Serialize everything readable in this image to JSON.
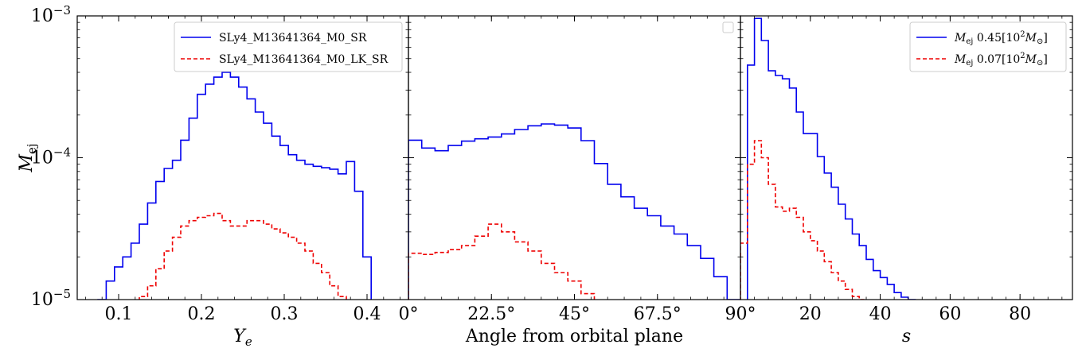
{
  "chart_data": [
    {
      "type": "step",
      "panel": "Ye",
      "xlabel": "Y",
      "xlabel_sub": "e",
      "ylabel": "M",
      "ylabel_sub": "ej",
      "xlim": [
        0.05,
        0.45
      ],
      "ylim": [
        1e-05,
        0.001
      ],
      "yscale": "log",
      "xticks": [
        0.1,
        0.2,
        0.3,
        0.4
      ],
      "xtick_labels": [
        "0.1",
        "0.2",
        "0.3",
        "0.4"
      ],
      "ytick_labels": [
        {
          "base": "10",
          "exp": "−5",
          "value": 1e-05
        },
        {
          "base": "10",
          "exp": "−4",
          "value": 0.0001
        },
        {
          "base": "10",
          "exp": "−3",
          "value": 0.001
        }
      ],
      "legend_position": "upper right",
      "series": [
        {
          "name": "SLy4_M13641364_M0_SR",
          "color": "#0000ee",
          "style": "solid",
          "bin_edges": [
            0.075,
            0.085,
            0.095,
            0.105,
            0.115,
            0.125,
            0.135,
            0.145,
            0.155,
            0.165,
            0.175,
            0.185,
            0.195,
            0.205,
            0.215,
            0.225,
            0.235,
            0.245,
            0.255,
            0.265,
            0.275,
            0.285,
            0.295,
            0.305,
            0.315,
            0.325,
            0.335,
            0.345,
            0.355,
            0.365,
            0.375,
            0.385,
            0.395,
            0.405
          ],
          "values": [
            1e-05,
            1.35e-05,
            1.7e-05,
            2e-05,
            2.5e-05,
            3.4e-05,
            4.8e-05,
            6.8e-05,
            8.4e-05,
            9.6e-05,
            0.000133,
            0.00019,
            0.00028,
            0.00033,
            0.00037,
            0.0004,
            0.00037,
            0.000315,
            0.00026,
            0.00021,
            0.000175,
            0.000142,
            0.000122,
            0.000105,
            9.6e-05,
            9e-05,
            8.7e-05,
            8.5e-05,
            8.3e-05,
            7.7e-05,
            9.4e-05,
            5.8e-05,
            2e-05
          ]
        },
        {
          "name": "SLy4_M13641364_M0_LK_SR",
          "color": "#ee0000",
          "style": "dashed",
          "bin_edges": [
            0.125,
            0.135,
            0.145,
            0.155,
            0.165,
            0.175,
            0.185,
            0.195,
            0.205,
            0.215,
            0.225,
            0.235,
            0.245,
            0.255,
            0.265,
            0.275,
            0.285,
            0.295,
            0.305,
            0.315,
            0.325,
            0.335,
            0.345,
            0.355,
            0.365,
            0.375
          ],
          "values": [
            1.05e-05,
            1.25e-05,
            1.65e-05,
            2.2e-05,
            2.75e-05,
            3.3e-05,
            3.6e-05,
            3.8e-05,
            3.9e-05,
            4.05e-05,
            3.6e-05,
            3.3e-05,
            3.3e-05,
            3.6e-05,
            3.6e-05,
            3.4e-05,
            3.15e-05,
            2.95e-05,
            2.75e-05,
            2.5e-05,
            2.2e-05,
            1.8e-05,
            1.55e-05,
            1.25e-05,
            1.05e-05
          ]
        }
      ]
    },
    {
      "type": "step",
      "panel": "angle",
      "xlabel": "Angle from orbital plane",
      "xlim": [
        0,
        90
      ],
      "ylim": [
        1e-05,
        0.001
      ],
      "yscale": "log",
      "xticks": [
        0,
        22.5,
        45,
        67.5,
        90
      ],
      "xtick_labels": [
        "0°",
        "22.5°",
        "45°",
        "67.5°",
        "90°"
      ],
      "legend_position": "upper right",
      "legend_empty": true,
      "series": [
        {
          "color": "#0000ee",
          "style": "solid",
          "bin_edges": [
            0,
            3.6,
            7.2,
            10.8,
            14.4,
            18,
            21.6,
            25.2,
            28.8,
            32.4,
            36,
            39.6,
            43.2,
            46.8,
            50.4,
            54,
            57.6,
            61.2,
            64.8,
            68.4,
            72,
            75.6,
            79.2,
            82.8,
            86.4,
            90
          ],
          "values": [
            0.000133,
            0.000117,
            0.000112,
            0.000122,
            0.000131,
            0.000136,
            0.00014,
            0.000147,
            0.000158,
            0.000168,
            0.000173,
            0.00017,
            0.000162,
            0.000132,
            9.1e-05,
            6.5e-05,
            5.3e-05,
            4.4e-05,
            3.9e-05,
            3.3e-05,
            2.9e-05,
            2.4e-05,
            1.95e-05,
            1.45e-05,
            1e-05
          ]
        },
        {
          "color": "#ee0000",
          "style": "dashed",
          "bin_edges": [
            0,
            3.6,
            7.2,
            10.8,
            14.4,
            18,
            21.6,
            25.2,
            28.8,
            32.4,
            36,
            39.6,
            43.2,
            46.8,
            50.4
          ],
          "values": [
            2.12e-05,
            2.08e-05,
            2.15e-05,
            2.25e-05,
            2.4e-05,
            2.8e-05,
            3.4e-05,
            3e-05,
            2.55e-05,
            2.2e-05,
            1.8e-05,
            1.55e-05,
            1.35e-05,
            1.1e-05
          ]
        }
      ]
    },
    {
      "type": "step",
      "panel": "entropy",
      "xlabel": "s",
      "xlim": [
        0,
        95
      ],
      "ylim": [
        1e-05,
        0.001
      ],
      "yscale": "log",
      "xticks": [
        20,
        40,
        60,
        80
      ],
      "xtick_labels": [
        "20",
        "40",
        "60",
        "80"
      ],
      "legend_position": "upper right",
      "series": [
        {
          "name_prefix": "M",
          "name_sub": "ej",
          "name_value": " 0.45[10",
          "name_exp": "2",
          "name_unit": "M",
          "name_unit_sub": "⊙",
          "name_close": "]",
          "color": "#0000ee",
          "style": "solid",
          "bin_edges": [
            0,
            2,
            4,
            6,
            8,
            10,
            12,
            14,
            16,
            18,
            20,
            22,
            24,
            26,
            28,
            30,
            32,
            34,
            36,
            38,
            40,
            42,
            44,
            46,
            48,
            50
          ],
          "values": [
            5e-06,
            0.00045,
            0.00096,
            0.00067,
            0.00041,
            0.00038,
            0.00036,
            0.00031,
            0.00021,
            0.000148,
            0.000148,
            0.000102,
            7.8e-05,
            6.2e-05,
            4.7e-05,
            3.7e-05,
            2.9e-05,
            2.4e-05,
            1.92e-05,
            1.6e-05,
            1.43e-05,
            1.28e-05,
            1.12e-05,
            1.04e-05,
            1e-05
          ]
        },
        {
          "name_prefix": "M",
          "name_sub": "ej",
          "name_value": " 0.07[10",
          "name_exp": "2",
          "name_unit": "M",
          "name_unit_sub": "⊙",
          "name_close": "]",
          "color": "#ee0000",
          "style": "dashed",
          "bin_edges": [
            0,
            2,
            4,
            6,
            8,
            10,
            12,
            14,
            16,
            18,
            20,
            22,
            24,
            26,
            28,
            30,
            32,
            34,
            36
          ],
          "values": [
            2.5e-05,
            9e-05,
            0.000132,
            0.0001,
            6.5e-05,
            4.5e-05,
            4.2e-05,
            4.4e-05,
            3.8e-05,
            3e-05,
            2.6e-05,
            2.2e-05,
            1.85e-05,
            1.55e-05,
            1.35e-05,
            1.18e-05,
            1.05e-05,
            1e-05
          ]
        }
      ]
    }
  ]
}
